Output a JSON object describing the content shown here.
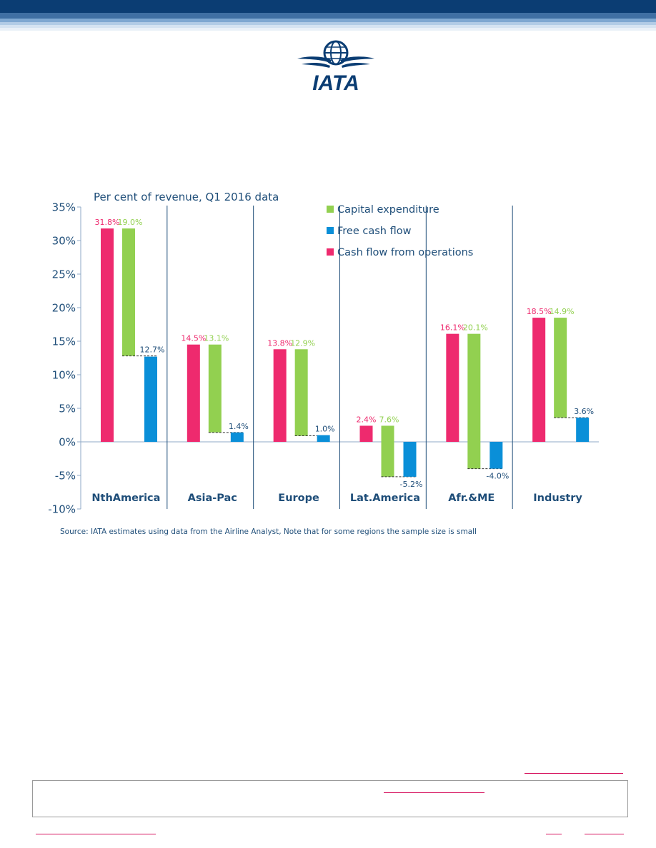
{
  "header": {
    "logo_text": "IATA",
    "brand_color": "#0b3d73"
  },
  "chart_data": {
    "type": "bar",
    "title": "Per cent of revenue,  Q1 2016 data",
    "ylim": [
      -10,
      35
    ],
    "y_ticks": [
      "35%",
      "30%",
      "25%",
      "20%",
      "15%",
      "10%",
      "5%",
      "0%",
      "-5%",
      "-10%"
    ],
    "categories": [
      "NthAmerica",
      "Asia-Pac",
      "Europe",
      "Lat.America",
      "Afr.&ME",
      "Industry"
    ],
    "series": [
      {
        "name": "Cash flow from operations",
        "color": "#ee2a6e",
        "values": [
          31.8,
          14.5,
          13.8,
          2.4,
          16.1,
          18.5
        ],
        "labels": [
          "31.8%",
          "14.5%",
          "13.8%",
          "2.4%",
          "16.1%",
          "18.5%"
        ]
      },
      {
        "name": "Capital expenditure",
        "color": "#92d050",
        "values": [
          19.0,
          13.1,
          12.9,
          7.6,
          20.1,
          14.9
        ],
        "labels": [
          "19.0%",
          "13.1%",
          "12.9%",
          "7.6%",
          "20.1%",
          "14.9%"
        ]
      },
      {
        "name": "Free cash flow",
        "color": "#0a8fd8",
        "values": [
          12.7,
          1.4,
          1.0,
          -5.2,
          -4.0,
          3.6
        ],
        "labels": [
          "12.7%",
          "1.4%",
          "1.0%",
          "-5.2%",
          "-4.0%",
          "3.6%"
        ]
      }
    ],
    "legend": [
      "Capital expenditure",
      "Free cash flow",
      "Cash flow from operations"
    ],
    "legend_position": "top-right",
    "source": "Source:  IATA estimates using data from the Airline Analyst,  Note that for some regions the sample size is small"
  }
}
